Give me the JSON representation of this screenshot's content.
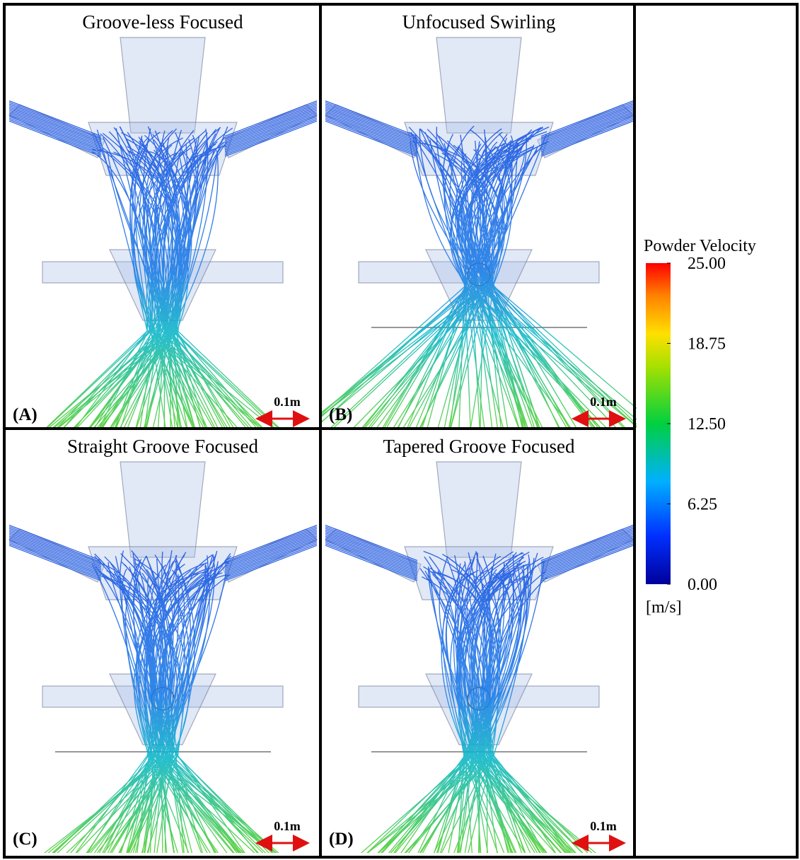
{
  "panels": [
    {
      "title": "Groove-less Focused",
      "label": "(A)",
      "scale": "0.1m"
    },
    {
      "title": "Unfocused Swirling",
      "label": "(B)",
      "scale": "0.1m"
    },
    {
      "title": "Straight Groove Focused",
      "label": "(C)",
      "scale": "0.1m"
    },
    {
      "title": "Tapered Groove Focused",
      "label": "(D)",
      "scale": "0.1m"
    }
  ],
  "colorbar": {
    "title": "Powder Velocity",
    "unit": "[m/s]",
    "range": [
      0,
      25
    ],
    "ticks": [
      {
        "value": 25,
        "label": "25.00"
      },
      {
        "value": 18.75,
        "label": "18.75"
      },
      {
        "value": 12.5,
        "label": "12.50"
      },
      {
        "value": 6.25,
        "label": "6.25"
      },
      {
        "value": 0,
        "label": "0.00"
      }
    ]
  }
}
